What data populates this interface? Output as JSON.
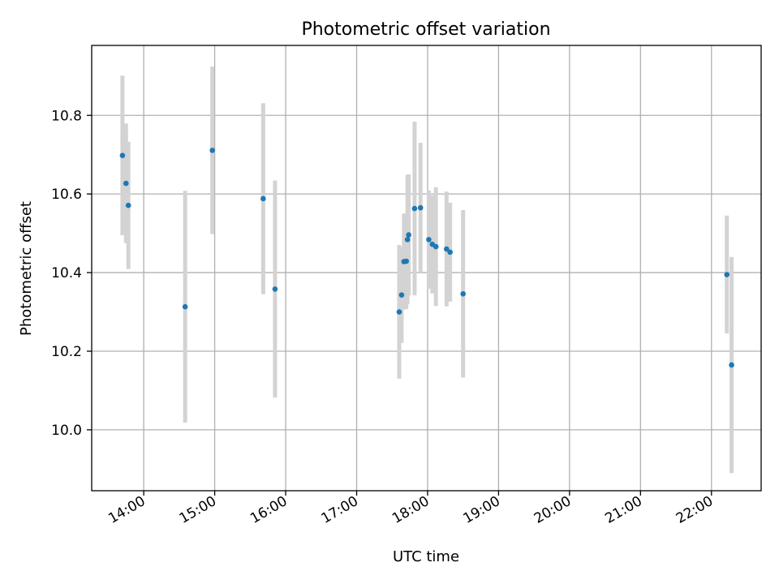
{
  "chart_data": {
    "type": "scatter",
    "title": "Photometric offset variation",
    "xlabel": "UTC time",
    "ylabel": "Photometric offset",
    "x_unit": "hour",
    "xlim": [
      "13:16",
      "22:42"
    ],
    "ylim": [
      9.845,
      10.978
    ],
    "x_ticks": [
      "14:00",
      "15:00",
      "16:00",
      "17:00",
      "18:00",
      "19:00",
      "20:00",
      "21:00",
      "22:00"
    ],
    "y_ticks": [
      "10.0",
      "10.2",
      "10.4",
      "10.6",
      "10.8"
    ],
    "grid": true,
    "colors": {
      "point": "#1f77b4",
      "errorbar": "#d3d3d3"
    },
    "points": [
      {
        "time": "13:42",
        "y": 10.698,
        "err": 0.203
      },
      {
        "time": "13:45",
        "y": 10.627,
        "err": 0.152
      },
      {
        "time": "13:47",
        "y": 10.571,
        "err": 0.162
      },
      {
        "time": "14:35",
        "y": 10.313,
        "err": 0.295
      },
      {
        "time": "14:58",
        "y": 10.711,
        "err": 0.213
      },
      {
        "time": "15:41",
        "y": 10.588,
        "err": 0.243
      },
      {
        "time": "15:51",
        "y": 10.358,
        "err": 0.276
      },
      {
        "time": "17:36",
        "y": 10.3,
        "err": 0.17
      },
      {
        "time": "17:38",
        "y": 10.343,
        "err": 0.122
      },
      {
        "time": "17:40",
        "y": 10.428,
        "err": 0.122
      },
      {
        "time": "17:42",
        "y": 10.429,
        "err": 0.122
      },
      {
        "time": "17:43",
        "y": 10.484,
        "err": 0.164
      },
      {
        "time": "17:44",
        "y": 10.496,
        "err": 0.154
      },
      {
        "time": "17:49",
        "y": 10.563,
        "err": 0.221
      },
      {
        "time": "17:54",
        "y": 10.565,
        "err": 0.165
      },
      {
        "time": "18:01",
        "y": 10.484,
        "err": 0.125
      },
      {
        "time": "18:04",
        "y": 10.472,
        "err": 0.125
      },
      {
        "time": "18:07",
        "y": 10.466,
        "err": 0.151
      },
      {
        "time": "18:16",
        "y": 10.46,
        "err": 0.146
      },
      {
        "time": "18:19",
        "y": 10.452,
        "err": 0.126
      },
      {
        "time": "18:30",
        "y": 10.346,
        "err": 0.213
      },
      {
        "time": "22:13",
        "y": 10.395,
        "err": 0.15
      },
      {
        "time": "22:17",
        "y": 10.165,
        "err": 0.275
      }
    ]
  }
}
